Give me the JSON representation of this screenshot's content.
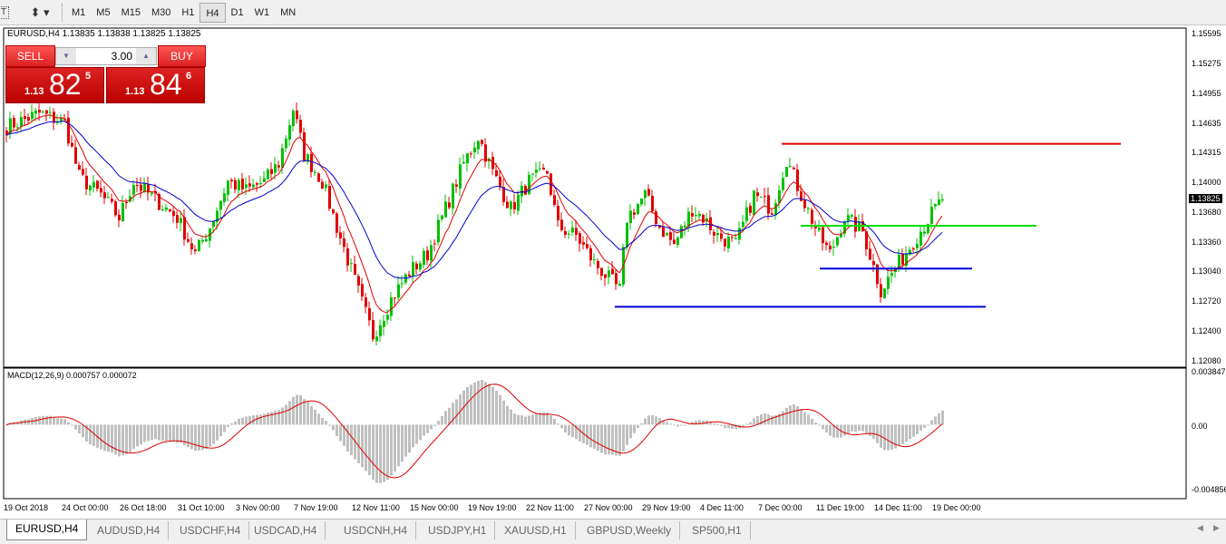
{
  "toolbar": {
    "timeframes": [
      "M1",
      "M5",
      "M15",
      "M30",
      "H1",
      "H4",
      "D1",
      "W1",
      "MN"
    ],
    "active": "H4"
  },
  "chart": {
    "title": "EURUSD,H4  1.13835 1.13838 1.13825 1.13825",
    "macd_label": "MACD(12,26,9) 0.000757 0.000072",
    "price_ticks": [
      "1.15595",
      "1.15275",
      "1.14955",
      "1.14635",
      "1.14315",
      "1.14000",
      "1.13680",
      "1.13360",
      "1.13040",
      "1.12720",
      "1.12400",
      "1.12080"
    ],
    "current_price": "1.13825",
    "macd_ticks": [
      "0.003847",
      "0.00",
      "-0.004856"
    ],
    "time_labels": [
      "19 Oct 2018",
      "24 Oct 00:00",
      "26 Oct 18:00",
      "31 Oct 10:00",
      "3 Nov 00:00",
      "7 Nov 19:00",
      "12 Nov 11:00",
      "15 Nov 00:00",
      "19 Nov 19:00",
      "22 Nov 11:00",
      "27 Nov 00:00",
      "29 Nov 19:00",
      "4 Dec 11:00",
      "7 Dec 00:00",
      "11 Dec 19:00",
      "14 Dec 11:00",
      "19 Dec 00:00"
    ],
    "colors": {
      "bull": "#00c000",
      "bear": "#e00000",
      "ma_fast": "#e00000",
      "ma_slow": "#0000cc",
      "macd_hist": "#c0c0c0",
      "macd_signal": "#e00000"
    },
    "horizontal_lines": [
      {
        "price": 1.1442,
        "color": "#e00000"
      },
      {
        "price": 1.1354,
        "color": "#00e000"
      },
      {
        "price": 1.1308,
        "color": "#0000dd"
      },
      {
        "price": 1.1267,
        "color": "#0000dd"
      }
    ],
    "close_anchors": [
      [
        0,
        1.14602
      ],
      [
        9,
        1.14748
      ],
      [
        16,
        1.1465
      ],
      [
        20,
        1.14066
      ],
      [
        26,
        1.13871
      ],
      [
        31,
        1.13628
      ],
      [
        35,
        1.14017
      ],
      [
        41,
        1.13822
      ],
      [
        47,
        1.13628
      ],
      [
        52,
        1.13238
      ],
      [
        56,
        1.1353
      ],
      [
        61,
        1.14017
      ],
      [
        66,
        1.1392
      ],
      [
        71,
        1.14017
      ],
      [
        75,
        1.14212
      ],
      [
        79,
        1.14796
      ],
      [
        82,
        1.14309
      ],
      [
        87,
        1.14017
      ],
      [
        91,
        1.1353
      ],
      [
        96,
        1.12946
      ],
      [
        101,
        1.12361
      ],
      [
        106,
        1.12751
      ],
      [
        111,
        1.13043
      ],
      [
        116,
        1.13238
      ],
      [
        121,
        1.13725
      ],
      [
        126,
        1.14212
      ],
      [
        130,
        1.14504
      ],
      [
        134,
        1.14114
      ],
      [
        139,
        1.13725
      ],
      [
        144,
        1.14017
      ],
      [
        149,
        1.14114
      ],
      [
        152,
        1.1353
      ],
      [
        157,
        1.13433
      ],
      [
        162,
        1.13141
      ],
      [
        169,
        1.12848
      ],
      [
        171,
        1.13628
      ],
      [
        176,
        1.13871
      ],
      [
        180,
        1.1353
      ],
      [
        184,
        1.13335
      ],
      [
        189,
        1.13725
      ],
      [
        192,
        1.13628
      ],
      [
        196,
        1.13433
      ],
      [
        201,
        1.13335
      ],
      [
        206,
        1.13871
      ],
      [
        211,
        1.13725
      ],
      [
        215,
        1.14261
      ],
      [
        219,
        1.13871
      ],
      [
        224,
        1.13433
      ],
      [
        227,
        1.13238
      ],
      [
        231,
        1.13628
      ],
      [
        236,
        1.13481
      ],
      [
        241,
        1.12848
      ],
      [
        246,
        1.13141
      ],
      [
        251,
        1.13433
      ],
      [
        256,
        1.13725
      ],
      [
        258,
        1.13825
      ]
    ]
  },
  "trade_panel": {
    "sell_label": "SELL",
    "buy_label": "BUY",
    "lot": "3.00",
    "sell_prefix": "1.13",
    "sell_big": "82",
    "sell_sup": "5",
    "buy_prefix": "1.13",
    "buy_big": "84",
    "buy_sup": "6"
  },
  "tabs": [
    "EURUSD,H4",
    "AUDUSD,H4",
    "USDCHF,H4",
    "USDCAD,H4",
    "USDCNH,H4",
    "USDJPY,H1",
    "XAUUSD,H1",
    "GBPUSD,Weekly",
    "SP500,H1"
  ]
}
